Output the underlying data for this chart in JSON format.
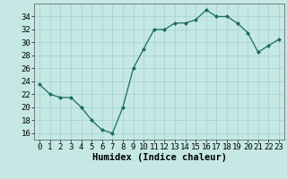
{
  "x": [
    0,
    1,
    2,
    3,
    4,
    5,
    6,
    7,
    8,
    9,
    10,
    11,
    12,
    13,
    14,
    15,
    16,
    17,
    18,
    19,
    20,
    21,
    22,
    23
  ],
  "y": [
    23.5,
    22,
    21.5,
    21.5,
    20,
    18,
    16.5,
    16,
    20,
    26,
    29,
    32,
    32,
    33,
    33,
    33.5,
    35,
    34,
    34,
    33,
    31.5,
    28.5,
    29.5,
    30.5
  ],
  "line_color": "#1a6b5e",
  "marker_color": "#1a6b5e",
  "bg_color": "#c5e8e5",
  "grid_color": "#a0d0cd",
  "xlabel": "Humidex (Indice chaleur)",
  "ylim": [
    15,
    36
  ],
  "yticks": [
    16,
    18,
    20,
    22,
    24,
    26,
    28,
    30,
    32,
    34
  ],
  "xticks": [
    0,
    1,
    2,
    3,
    4,
    5,
    6,
    7,
    8,
    9,
    10,
    11,
    12,
    13,
    14,
    15,
    16,
    17,
    18,
    19,
    20,
    21,
    22,
    23
  ],
  "xlabel_fontsize": 7.5,
  "tick_fontsize": 6.5
}
